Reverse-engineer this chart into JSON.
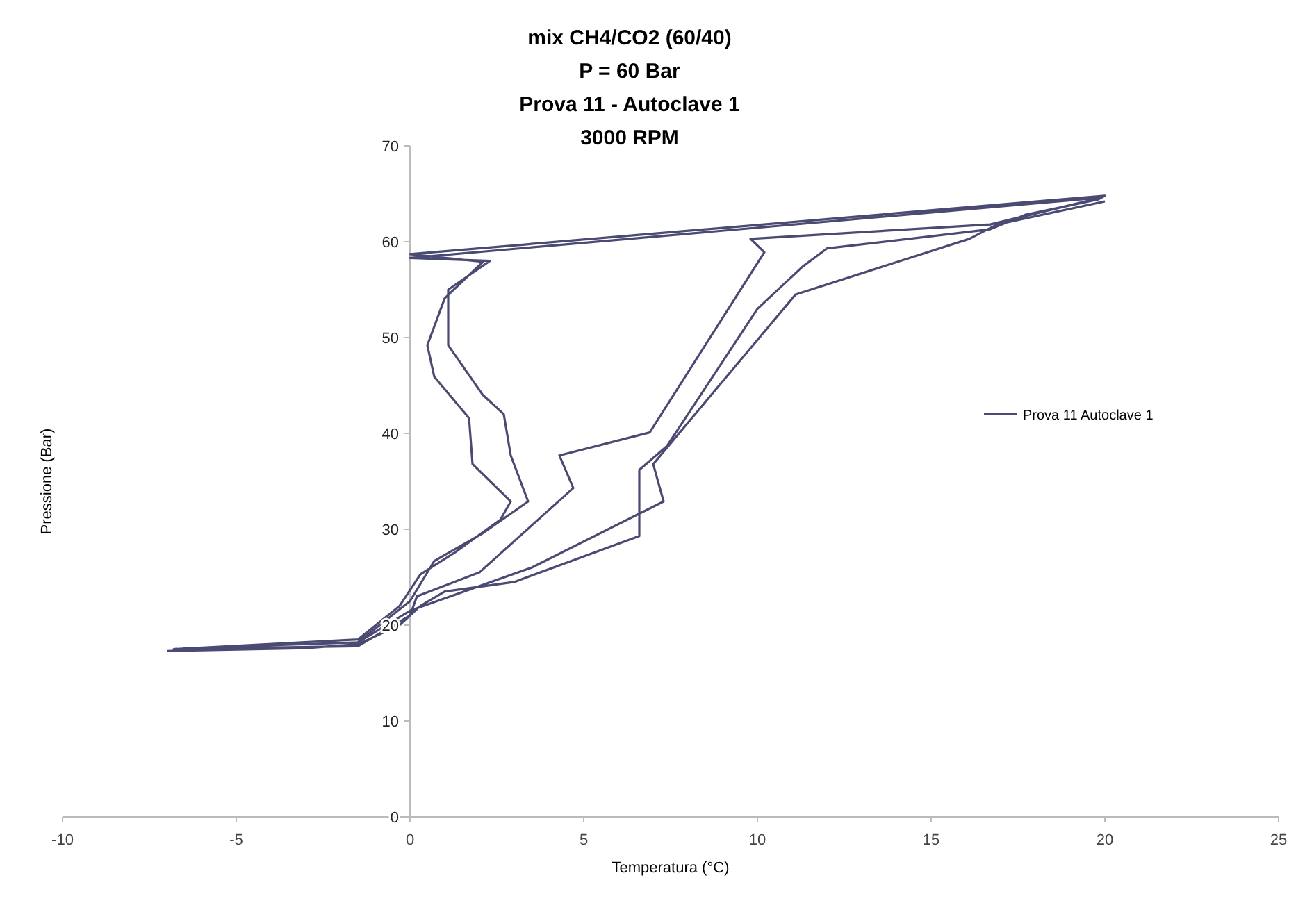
{
  "chart_data": {
    "type": "line",
    "title": "mix CH4/CO2 (60/40)",
    "subtitle": "P = 60 Bar\nProva 11 - Autoclave 1\n3000 RPM",
    "xlabel": "Temperatura (°C)",
    "ylabel": "Pressione (Bar)",
    "xlim": [
      -10,
      25
    ],
    "xticks": [
      -10,
      -5,
      0,
      5,
      10,
      15,
      20,
      25
    ],
    "ylim": [
      0,
      70
    ],
    "yticks": [
      0,
      10,
      20,
      30,
      40,
      50,
      60,
      70
    ],
    "grid": false,
    "legend": "right",
    "marker": "none",
    "line_style": "solid",
    "x": [
      -7,
      -3,
      -1.5,
      -0.3,
      0.3,
      1,
      3,
      6.6,
      6.6,
      7.4,
      10,
      11.3,
      12,
      16.7,
      17.7,
      19.8,
      20,
      0,
      2.1,
      1,
      0.5,
      0.7,
      1.7,
      1.8,
      2.9,
      2.6,
      1.3,
      0.3,
      -0.3,
      -1.5,
      -6.8,
      -1.5,
      0,
      0.2,
      2,
      4.7,
      4.3,
      6.9,
      10.2,
      9.8,
      16.7,
      19.9,
      0,
      2.3,
      1.1,
      1.1,
      2.1,
      2.7,
      2.9,
      3.4,
      2.1,
      0.7,
      0,
      -1.5,
      -6.5,
      -1.5,
      0,
      3.5,
      7.3,
      7,
      11.1,
      16.1,
      16.9,
      20
    ],
    "series": [
      {
        "name": "Prova 11 Autoclave 1",
        "color": "#4a4a72",
        "values": [
          17.3,
          17.6,
          18,
          20,
          22,
          23.5,
          24.5,
          29.3,
          36.2,
          38.7,
          53,
          57.4,
          59.3,
          61.3,
          62.8,
          64.4,
          64.8,
          58.7,
          57.9,
          54.1,
          49.2,
          45.9,
          41.6,
          36.8,
          32.9,
          31,
          27.6,
          25.3,
          22,
          18.5,
          17.5,
          17.8,
          21,
          23,
          25.5,
          34.3,
          37.7,
          40.1,
          58.9,
          60.3,
          61.8,
          64.6,
          58.3,
          58,
          55,
          49.2,
          44,
          42,
          37.7,
          32.9,
          29.6,
          26.7,
          22.5,
          18.2,
          17.6,
          18.2,
          21.5,
          26,
          32.9,
          36.8,
          54.5,
          60.3,
          61.8,
          64.2
        ]
      }
    ]
  }
}
